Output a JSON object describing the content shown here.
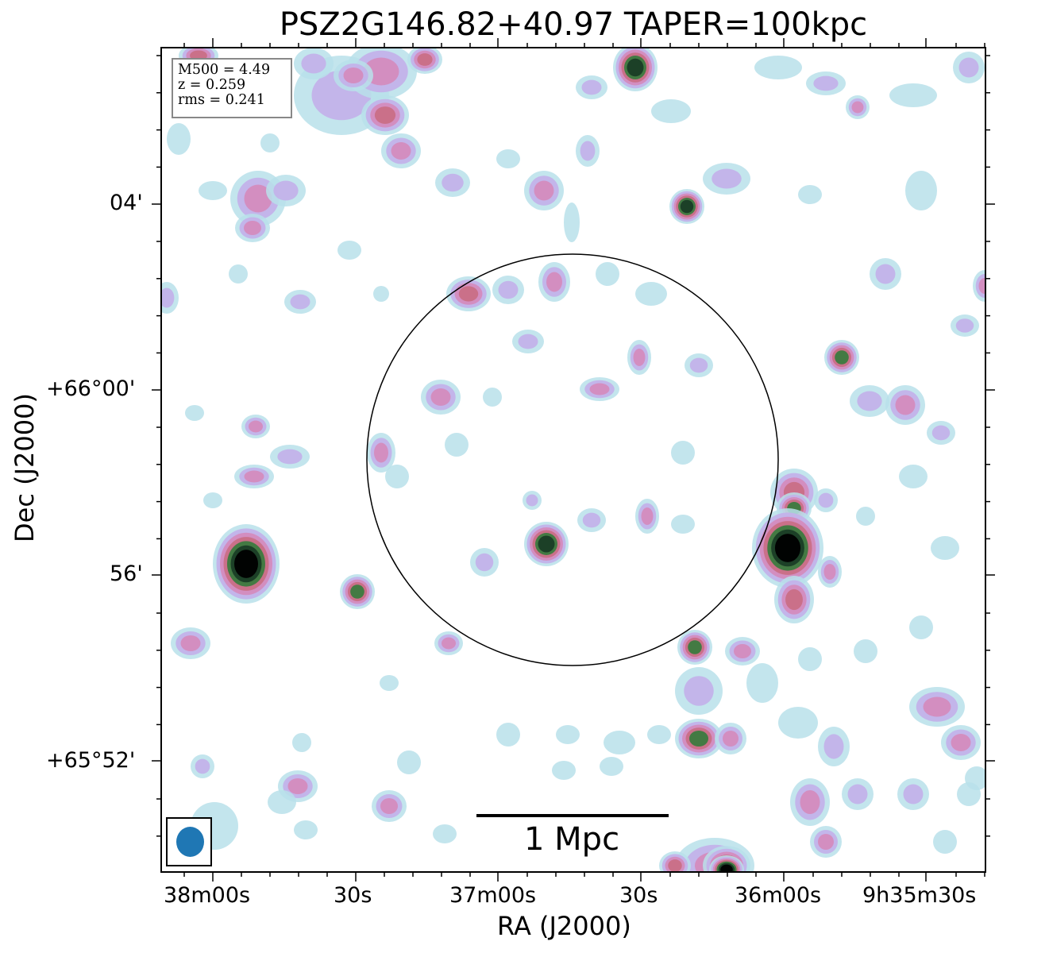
{
  "figure": {
    "title": "PSZ2G146.82+40.97 TAPER=100kpc",
    "xlabel": "RA (J2000)",
    "ylabel": "Dec (J2000)",
    "x_ticks": [
      "38m00s",
      "30s",
      "37m00s",
      "30s",
      "36m00s",
      "9h35m30s"
    ],
    "y_ticks": [
      "04'",
      "+66°00'",
      "56'",
      "+65°52'"
    ],
    "info": {
      "m500": "M500 = 4.49",
      "z": "z = 0.259",
      "rms": "rms = 0.241"
    },
    "scalebar_label": "1 Mpc",
    "colormap": [
      "#ffffff",
      "#b9e0ea",
      "#c3b2ea",
      "#d48cbe",
      "#c96f86",
      "#3b7a3f",
      "#1a3d26",
      "#000000"
    ],
    "beam_color": "#1f77b4"
  }
}
